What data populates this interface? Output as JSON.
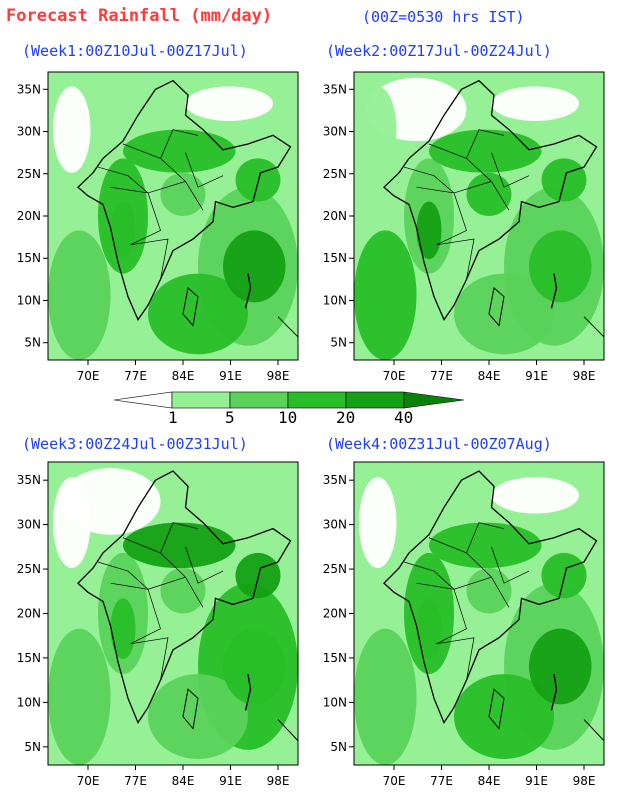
{
  "header": {
    "title": "Forecast Rainfall (mm/day)",
    "subtitle": "(00Z=0530 hrs IST)",
    "title_color": "#ff3b3b",
    "subtitle_color": "#1f3dff"
  },
  "axes": {
    "lat_ticks": [
      "35N",
      "30N",
      "25N",
      "20N",
      "15N",
      "10N",
      "5N"
    ],
    "lon_ticks": [
      "70E",
      "77E",
      "84E",
      "91E",
      "98E"
    ]
  },
  "panels": [
    {
      "label": "(Week1:00Z10Jul-00Z17Jul)"
    },
    {
      "label": "(Week2:00Z17Jul-00Z24Jul)"
    },
    {
      "label": "(Week3:00Z24Jul-00Z31Jul)"
    },
    {
      "label": "(Week4:00Z31Jul-00Z07Aug)"
    }
  ],
  "legend": {
    "labels": [
      "1",
      "5",
      "10",
      "20",
      "40"
    ],
    "colors": [
      "#ffffff",
      "#96f096",
      "#5ad25a",
      "#28be28",
      "#14a014",
      "#0a820a"
    ]
  }
}
